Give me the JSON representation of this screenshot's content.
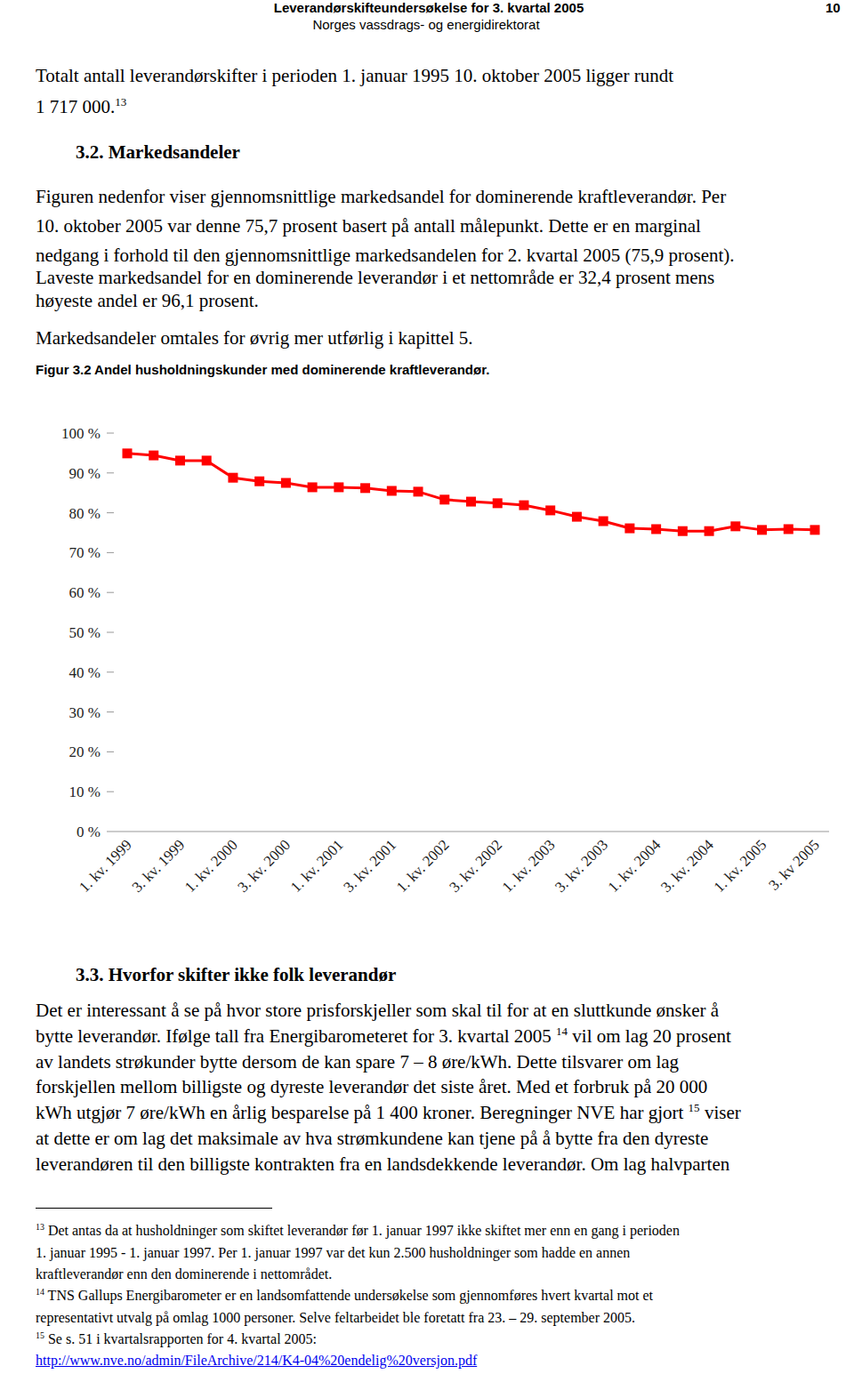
{
  "header": {
    "title": "Leverandørskifteundersøkelse for 3. kvartal 2005",
    "org": "Norges vassdrags- og energidirektorat",
    "page": "10"
  },
  "blocks": [
    {
      "kind": "p",
      "lines": [
        [
          {
            "text": "Totalt antall leverandørskifter i perioden 1. januar 1995 10. oktober 2005 ligger rundt"
          }
        ],
        [
          {
            "text": "1 717 000."
          },
          {
            "text": "13",
            "style": "sup"
          }
        ]
      ]
    },
    {
      "kind": "h",
      "lines": [
        [
          {
            "text": "3.2. Markedsandeler"
          }
        ]
      ]
    },
    {
      "kind": "p",
      "lines": [
        [
          {
            "text": "Figuren nedenfor viser gjennomsnittlige markedsandel for dominerende kraftleverandør. Per"
          }
        ],
        [
          {
            "text": "10. oktober 2005 var denne 75,7 prosent basert på antall målepunkt. Dette er en marginal"
          }
        ],
        [
          {
            "text": "nedgang i forhold til den gjennomsnittlige markedsandelen for 2. kvartal 2005 (75,9 prosent)."
          }
        ],
        [
          {
            "text": "Laveste markedsandel for en dominerende leverandør i et nettområde er 32,4 prosent mens"
          }
        ],
        [
          {
            "text": "høyeste andel er 96,1 prosent."
          }
        ]
      ]
    },
    {
      "kind": "p",
      "lines": [
        [
          {
            "text": "Markedsandeler omtales for øvrig mer utførlig i kapittel 5."
          }
        ]
      ]
    },
    {
      "kind": "caption",
      "lines": [
        [
          {
            "text": "Figur 3.2 Andel husholdningskunder med dominerende kraftleverandør."
          }
        ]
      ]
    },
    {
      "kind": "h",
      "lines": [
        [
          {
            "text": "3.3. Hvorfor skifter ikke folk leverandør"
          }
        ]
      ]
    },
    {
      "kind": "p",
      "lines": [
        [
          {
            "text": "Det er interessant å se på hvor store prisforskjeller som skal til for at en sluttkunde ønsker å"
          }
        ],
        [
          {
            "text": "bytte leverandør. Ifølge tall fra Energibarometeret for 3. kvartal 2005 "
          },
          {
            "text": "14",
            "style": "sup"
          },
          {
            "text": " vil om lag 20 prosent"
          }
        ],
        [
          {
            "text": "av landets strøkunder bytte dersom de kan spare 7 – 8 øre/kWh. Dette tilsvarer om lag"
          }
        ],
        [
          {
            "text": "forskjellen mellom billigste og dyreste leverandør det siste året. Med et forbruk på 20 000"
          }
        ],
        [
          {
            "text": "kWh utgjør 7 øre/kWh en årlig besparelse på 1 400 kroner. Beregninger NVE har gjort "
          },
          {
            "text": "15",
            "style": "sup"
          },
          {
            "text": " viser"
          }
        ],
        [
          {
            "text": "at dette er om lag det maksimale av hva strømkundene kan tjene på å bytte fra den dyreste"
          }
        ],
        [
          {
            "text": "leverandøren til den billigste kontrakten fra en landsdekkende leverandør. Om lag halvparten"
          }
        ]
      ]
    },
    {
      "kind": "fn",
      "lines": [
        [
          {
            "text": "13",
            "style": "sup"
          },
          {
            "text": " Det antas da at husholdninger som skiftet leverandør før 1. januar 1997 ikke skiftet mer enn en gang i perioden"
          }
        ],
        [
          {
            "text": "1. januar 1995 - 1. januar 1997. Per 1. januar 1997 var det kun 2.500 husholdninger som hadde en annen"
          }
        ],
        [
          {
            "text": "kraftleverandør enn den dominerende i nettområdet."
          }
        ],
        [
          {
            "text": "14",
            "style": "sup"
          },
          {
            "text": " TNS Gallups Energibarometer er en landsomfattende undersøkelse som gjennomføres hvert kvartal mot et"
          }
        ],
        [
          {
            "text": "representativt utvalg på omlag 1000 personer. Selve feltarbeidet ble foretatt fra 23. – 29. september 2005."
          }
        ],
        [
          {
            "text": "15",
            "style": "sup"
          },
          {
            "text": " Se s. 51 i kvartalsrapporten for 4. kvartal 2005:"
          }
        ],
        [
          {
            "text": "http://www.nve.no/admin/FileArchive/214/K4-04%20endelig%20versjon.pdf",
            "style": "link"
          }
        ]
      ]
    }
  ],
  "chart_data": {
    "type": "line",
    "categories": [
      "1. kv. 1999",
      null,
      "3. kv. 1999",
      null,
      "1. kv. 2000",
      null,
      "3. kv. 2000",
      null,
      "1. kv. 2001",
      null,
      "3. kv. 2001",
      null,
      "1. kv. 2002",
      null,
      "3. kv. 2002",
      null,
      "1. kv. 2003",
      null,
      "3. kv. 2003",
      null,
      "1. kv. 2004",
      null,
      "3. kv. 2004",
      null,
      "1. kv. 2005",
      null,
      "3. kv 2005"
    ],
    "values": [
      94.9,
      94.4,
      93.1,
      93.1,
      88.8,
      87.9,
      87.5,
      86.4,
      86.4,
      86.2,
      85.5,
      85.3,
      83.3,
      82.8,
      82.4,
      81.9,
      80.6,
      79.0,
      77.9,
      76.1,
      75.9,
      75.4,
      75.4,
      76.6,
      75.7,
      75.9,
      75.7
    ],
    "color": "#ff0000",
    "marker": "square",
    "ylim": [
      0,
      100
    ],
    "yticks": [
      {
        "value": 0,
        "label": "0 %"
      },
      {
        "value": 10,
        "label": "10 %"
      },
      {
        "value": 20,
        "label": "20 %"
      },
      {
        "value": 30,
        "label": "30 %"
      },
      {
        "value": 40,
        "label": "40 %"
      },
      {
        "value": 50,
        "label": "50 %"
      },
      {
        "value": 60,
        "label": "60 %"
      },
      {
        "value": 70,
        "label": "70 %"
      },
      {
        "value": 80,
        "label": "80 %"
      },
      {
        "value": 90,
        "label": "90 %"
      },
      {
        "value": 100,
        "label": "100 %"
      }
    ],
    "grid": false
  }
}
